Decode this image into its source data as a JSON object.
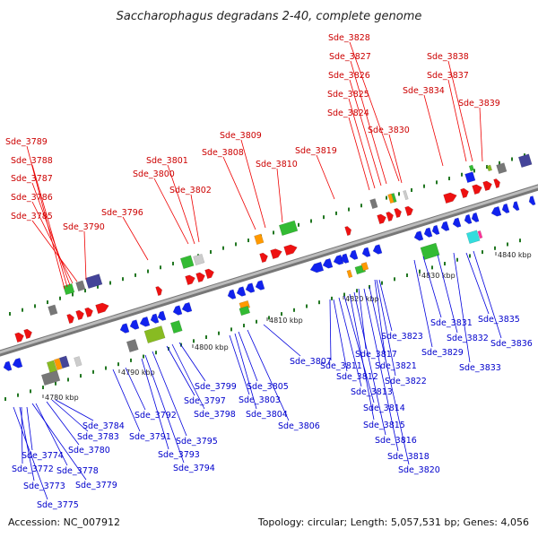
{
  "title": "Saccharophagus degradans 2-40, complete genome",
  "footer": {
    "accession": "Accession: NC_007912",
    "topology": "Topology: circular; Length: 5,057,531 bp; Genes: 4,056"
  },
  "ticks": [
    "4780 kbp",
    "4790 kbp",
    "4800 kbp",
    "4810 kbp",
    "4820 kbp",
    "4830 kbp",
    "4840 kbp"
  ],
  "forward_labels": [
    "Sde_3785",
    "Sde_3786",
    "Sde_3787",
    "Sde_3788",
    "Sde_3789",
    "Sde_3790",
    "Sde_3796",
    "Sde_3800",
    "Sde_3801",
    "Sde_3802",
    "Sde_3808",
    "Sde_3809",
    "Sde_3810",
    "Sde_3819",
    "Sde_3824",
    "Sde_3825",
    "Sde_3826",
    "Sde_3827",
    "Sde_3828",
    "Sde_3830",
    "Sde_3834",
    "Sde_3837",
    "Sde_3838",
    "Sde_3839"
  ],
  "reverse_labels": [
    "Sde_3774",
    "Sde_3772",
    "Sde_3773",
    "Sde_3775",
    "Sde_3778",
    "Sde_3779",
    "Sde_3780",
    "Sde_3783",
    "Sde_3784",
    "Sde_3791",
    "Sde_3792",
    "Sde_3793",
    "Sde_3794",
    "Sde_3795",
    "Sde_3797",
    "Sde_3798",
    "Sde_3799",
    "Sde_3803",
    "Sde_3804",
    "Sde_3805",
    "Sde_3806",
    "Sde_3807",
    "Sde_3811",
    "Sde_3812",
    "Sde_3813",
    "Sde_3814",
    "Sde_3815",
    "Sde_3816",
    "Sde_3817",
    "Sde_3818",
    "Sde_3820",
    "Sde_3821",
    "Sde_3822",
    "Sde_3823",
    "Sde_3829",
    "Sde_3831",
    "Sde_3832",
    "Sde_3833",
    "Sde_3835",
    "Sde_3836"
  ],
  "colors": {
    "forward": "#ee1111",
    "reverse": "#1122ee",
    "backbone": "#999999",
    "other": [
      "#88bb22",
      "#33bb33",
      "#ff9900",
      "#777777",
      "#444499",
      "#33dddd",
      "#ff3399",
      "#cccccc"
    ]
  }
}
